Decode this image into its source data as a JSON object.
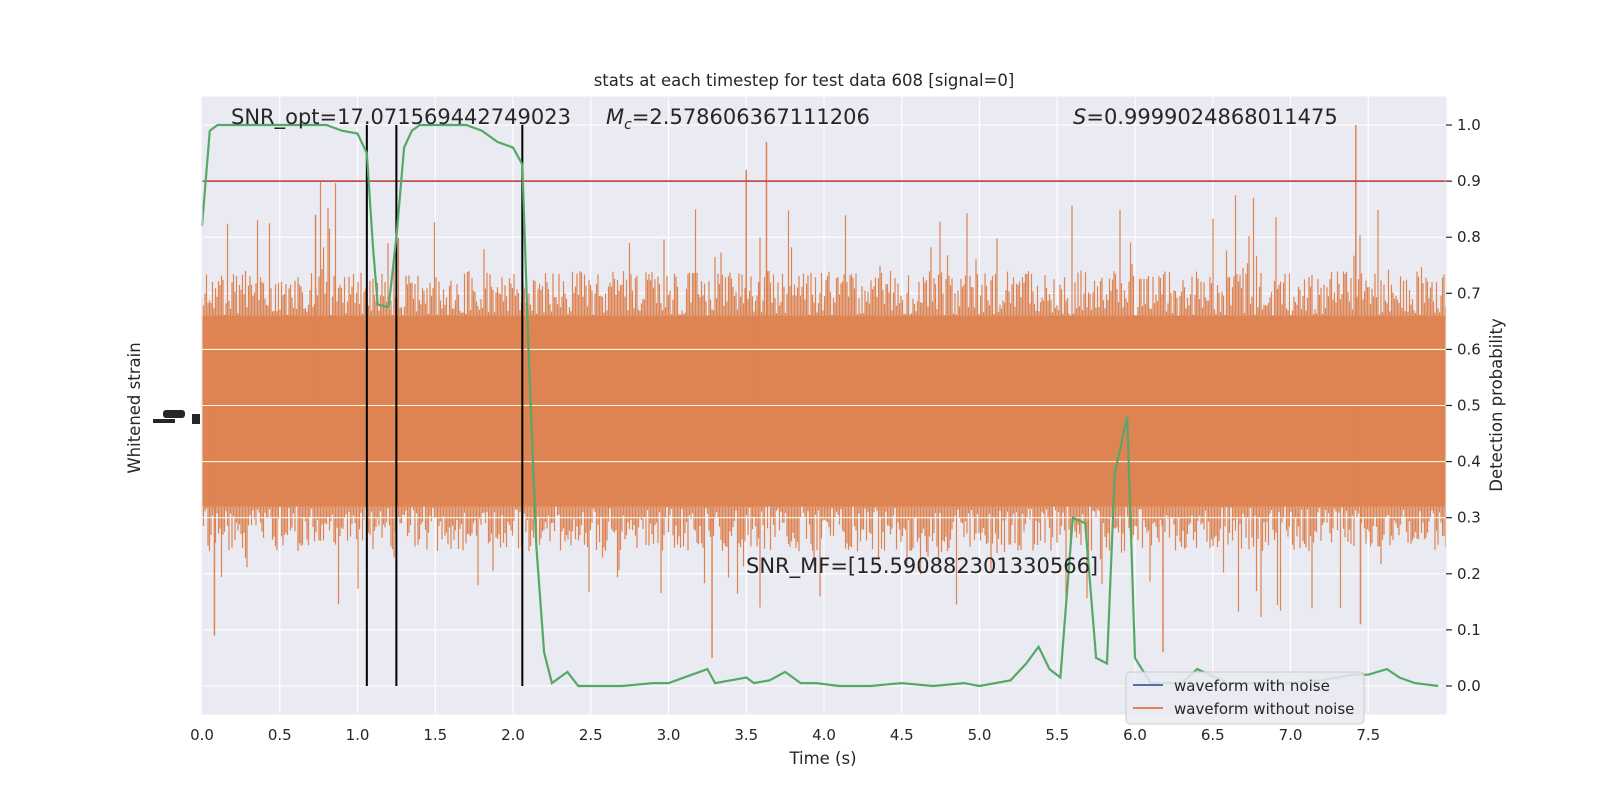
{
  "chart_data": {
    "type": "line",
    "title": "stats at each timestep for test data 608 [signal=0]",
    "xlabel": "Time (s)",
    "ylabel_left": "Whitened strain",
    "ylabel_right": "Detection probability",
    "xlim": [
      0.0,
      8.0
    ],
    "ylim_right": [
      -0.05,
      1.05
    ],
    "grid": true,
    "background": "#eaeaf2",
    "x_ticks": [
      "0.0",
      "0.5",
      "1.0",
      "1.5",
      "2.0",
      "2.5",
      "3.0",
      "3.5",
      "4.0",
      "4.5",
      "5.0",
      "5.5",
      "6.0",
      "6.5",
      "7.0",
      "7.5"
    ],
    "x_tick_values": [
      0.0,
      0.5,
      1.0,
      1.5,
      2.0,
      2.5,
      3.0,
      3.5,
      4.0,
      4.5,
      5.0,
      5.5,
      6.0,
      6.5,
      7.0,
      7.5
    ],
    "y_right_ticks": [
      "0.0",
      "0.1",
      "0.2",
      "0.3",
      "0.4",
      "0.5",
      "0.6",
      "0.7",
      "0.8",
      "0.9",
      "1.0"
    ],
    "y_right_tick_values": [
      0.0,
      0.1,
      0.2,
      0.3,
      0.4,
      0.5,
      0.6,
      0.7,
      0.8,
      0.9,
      1.0
    ],
    "annotations": {
      "snr_opt": "SNR_opt=17.071569442749023",
      "mc_symbol": "M",
      "mc_sub": "c",
      "mc_value": "=2.578606367111206",
      "s_symbol": "S",
      "s_value": "=0.9999024868011475",
      "snr_mf": "SNR_MF=[15.590882301330566]"
    },
    "threshold": {
      "value": 0.9,
      "color": "#c44e52"
    },
    "vertical_lines": [
      1.06,
      1.25,
      2.06
    ],
    "strain_envelope": {
      "center": 0.5,
      "band_lower": 0.32,
      "band_upper": 0.66,
      "spike_max": 1.0,
      "spike_min": 0.0
    },
    "series": [
      {
        "name": "waveform with noise",
        "color": "#4c72b0",
        "values": []
      },
      {
        "name": "waveform without noise",
        "color": "#dd8452"
      },
      {
        "color": "#55a868",
        "x": [
          0.0,
          0.05,
          0.1,
          0.2,
          0.4,
          0.6,
          0.8,
          0.9,
          1.0,
          1.06,
          1.1,
          1.13,
          1.2,
          1.25,
          1.3,
          1.35,
          1.4,
          1.5,
          1.7,
          1.8,
          1.9,
          2.0,
          2.06,
          2.1,
          2.15,
          2.2,
          2.25,
          2.35,
          2.42,
          2.5,
          2.7,
          2.9,
          3.0,
          3.15,
          3.25,
          3.3,
          3.4,
          3.5,
          3.55,
          3.65,
          3.75,
          3.85,
          3.95,
          4.1,
          4.3,
          4.5,
          4.7,
          4.9,
          5.0,
          5.2,
          5.3,
          5.38,
          5.45,
          5.52,
          5.6,
          5.68,
          5.75,
          5.82,
          5.87,
          5.95,
          6.0,
          6.1,
          6.3,
          6.4,
          6.6,
          6.8,
          7.0,
          7.2,
          7.4,
          7.5,
          7.62,
          7.7,
          7.8,
          7.95
        ],
        "y": [
          0.82,
          0.99,
          1.0,
          1.0,
          1.0,
          1.0,
          1.0,
          0.99,
          0.985,
          0.95,
          0.78,
          0.68,
          0.675,
          0.8,
          0.96,
          0.99,
          1.0,
          1.0,
          1.0,
          0.99,
          0.97,
          0.96,
          0.93,
          0.6,
          0.25,
          0.06,
          0.005,
          0.025,
          0.0,
          0.0,
          0.0,
          0.005,
          0.005,
          0.02,
          0.03,
          0.005,
          0.01,
          0.015,
          0.005,
          0.01,
          0.025,
          0.005,
          0.005,
          0.0,
          0.0,
          0.005,
          0.0,
          0.005,
          0.0,
          0.01,
          0.04,
          0.07,
          0.03,
          0.015,
          0.3,
          0.29,
          0.05,
          0.04,
          0.38,
          0.48,
          0.05,
          0.005,
          0.005,
          0.03,
          0.005,
          0.005,
          0.005,
          0.01,
          0.02,
          0.02,
          0.03,
          0.015,
          0.005,
          0.0
        ]
      }
    ],
    "legend": {
      "position": "lower-right"
    }
  }
}
